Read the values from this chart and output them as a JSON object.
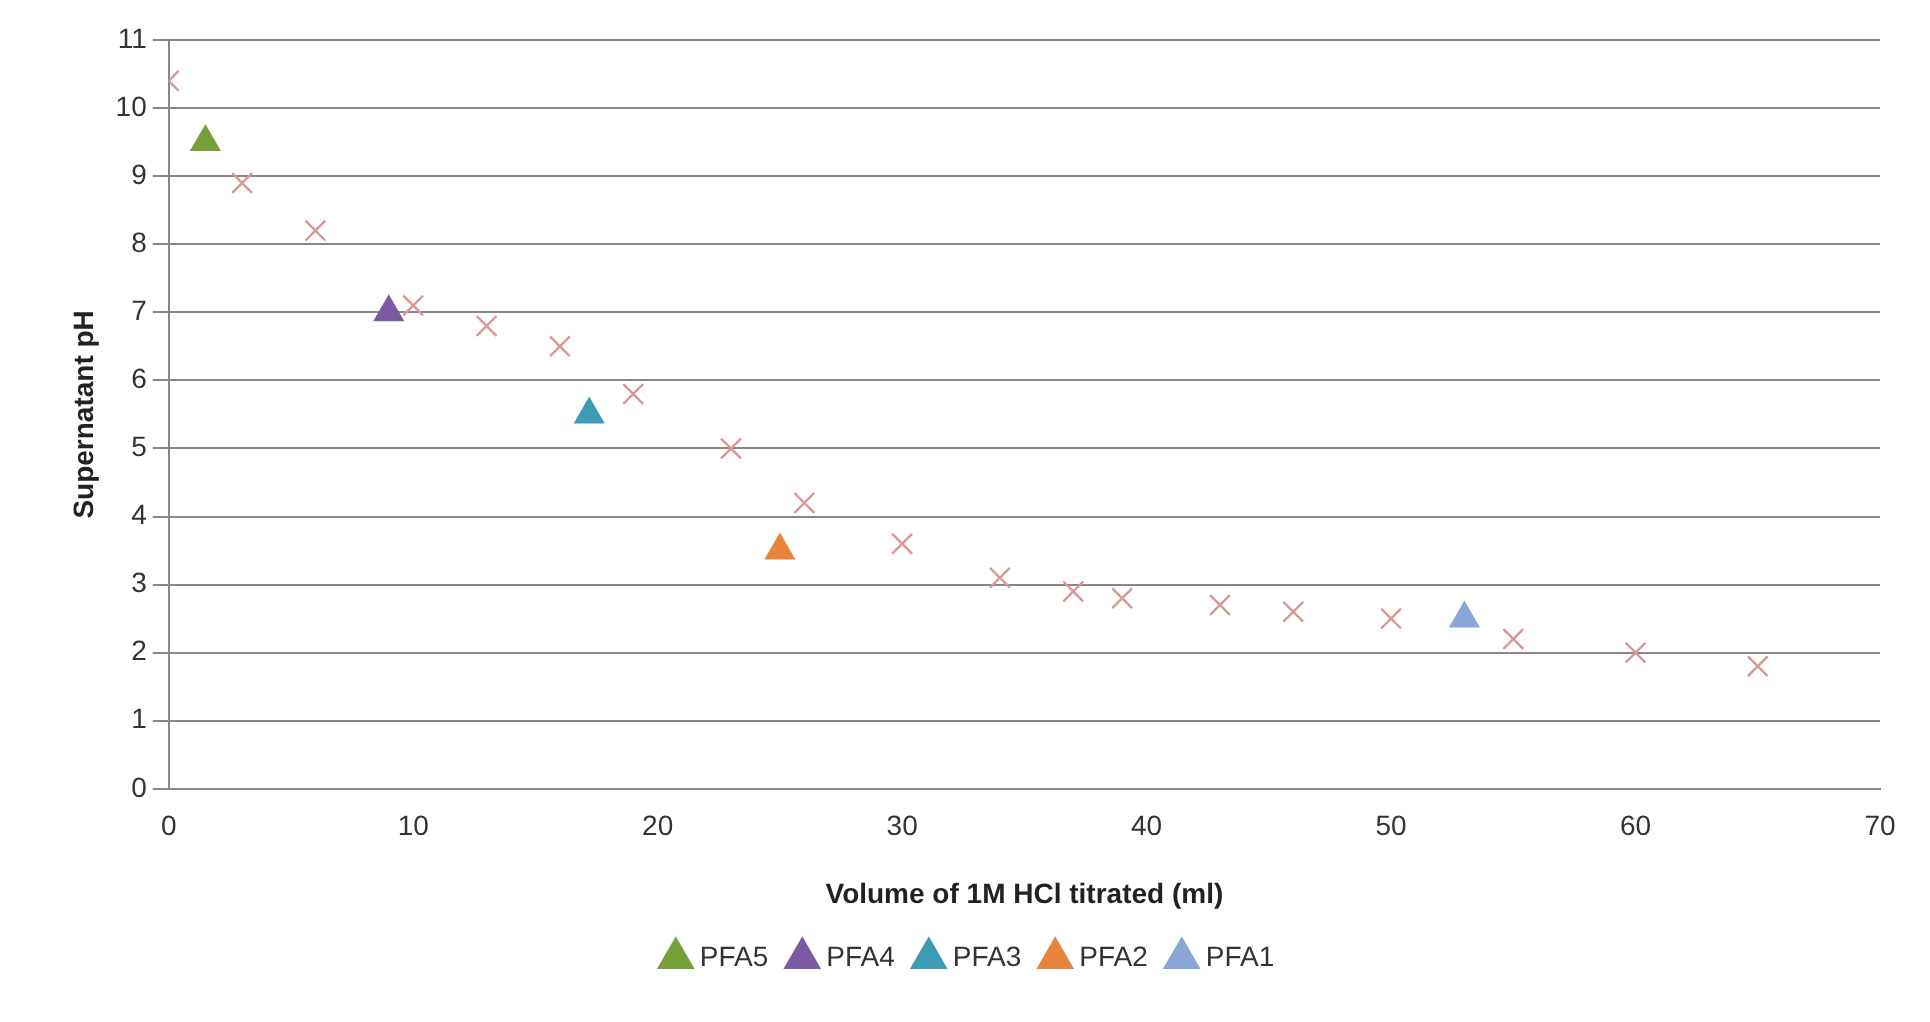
{
  "chart_data": {
    "type": "scatter",
    "xlabel": "Volume of 1M HCl titrated (ml)",
    "ylabel": "Supernatant pH",
    "xlim": [
      0,
      70
    ],
    "xticks": [
      0,
      10,
      20,
      30,
      40,
      50,
      60,
      70
    ],
    "ylim": [
      0,
      11
    ],
    "yticks": [
      0,
      1,
      2,
      3,
      4,
      5,
      6,
      7,
      8,
      9,
      10,
      11
    ],
    "grid": "y",
    "legend": "bottom",
    "marker": "triangle",
    "series": [
      {
        "color": "#d99694",
        "marker": "cross",
        "x": [
          0,
          3,
          6,
          10,
          13,
          16,
          19,
          23,
          26,
          30,
          34,
          37,
          39,
          43,
          46,
          50,
          55,
          60,
          65
        ],
        "values": [
          10.4,
          8.9,
          8.2,
          7.1,
          6.8,
          6.5,
          5.8,
          5.0,
          4.2,
          3.6,
          3.1,
          2.9,
          2.8,
          2.7,
          2.6,
          2.5,
          2.2,
          2.0,
          1.8
        ]
      },
      {
        "name": "PFA5",
        "color": "#77a03b",
        "x": [
          1.5
        ],
        "values": [
          9.5
        ]
      },
      {
        "name": "PFA4",
        "color": "#7b5ba1",
        "x": [
          9
        ],
        "values": [
          7
        ]
      },
      {
        "name": "PFA3",
        "color": "#3c9cb5",
        "x": [
          17.2
        ],
        "values": [
          5.5
        ]
      },
      {
        "name": "PFA2",
        "color": "#e8853b",
        "x": [
          25
        ],
        "values": [
          3.5
        ]
      },
      {
        "name": "PFA1",
        "color": "#8aa6d6",
        "x": [
          53
        ],
        "values": [
          2.5
        ]
      }
    ]
  }
}
